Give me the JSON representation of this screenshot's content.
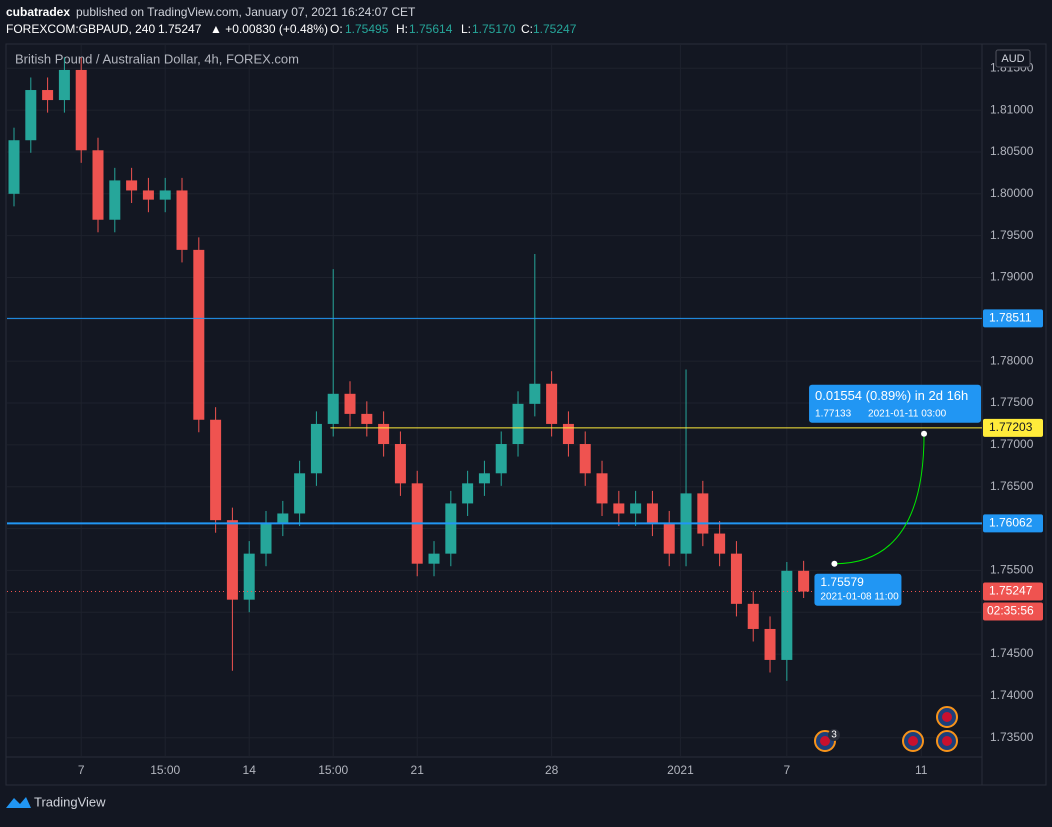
{
  "header": {
    "author": "cubatradex",
    "published": "published on TradingView.com, January 07, 2021 16:24:07 CET",
    "symbol": "FOREXCOM:GBPAUD, 240",
    "last": "1.75247",
    "change": "▲ +0.00830 (+0.48%)",
    "o_label": "O:",
    "o": "1.75495",
    "h_label": "H:",
    "h": "1.75614",
    "l_label": "L:",
    "l": "1.75170",
    "c_label": "C:",
    "c": "1.75247"
  },
  "footer": {
    "brand": "TradingView"
  },
  "chart_data": {
    "type": "candlestick",
    "title": "British Pound / Australian Dollar, 4h, FOREX.com",
    "currency": "AUD",
    "up_color": "#26a69a",
    "down_color": "#ef5350",
    "grid": true,
    "x": [
      0,
      3,
      6,
      9,
      12,
      15,
      18,
      21,
      24,
      27,
      30,
      33,
      36,
      39,
      42,
      45,
      48,
      51,
      54,
      57,
      60,
      63,
      66,
      69,
      72,
      75,
      78,
      81,
      84,
      87,
      90,
      93,
      96,
      99,
      102,
      105,
      108,
      111,
      114,
      117,
      120,
      123,
      126,
      129,
      132,
      135,
      138,
      141
    ],
    "open": [
      1.8,
      1.8064,
      1.8124,
      1.8112,
      1.8148,
      1.8052,
      1.7969,
      1.8016,
      1.8004,
      1.7993,
      1.8004,
      1.7933,
      1.773,
      1.761,
      1.7515,
      1.757,
      1.7606,
      1.7618,
      1.7666,
      1.7725,
      1.7761,
      1.7737,
      1.7725,
      1.7701,
      1.7654,
      1.7558,
      1.757,
      1.763,
      1.7654,
      1.7666,
      1.7701,
      1.7749,
      1.7773,
      1.7725,
      1.7701,
      1.7666,
      1.763,
      1.7618,
      1.763,
      1.7606,
      1.757,
      1.7642,
      1.7594,
      1.757,
      1.751,
      1.748,
      1.7443,
      1.75495
    ],
    "high": [
      1.8079,
      1.8139,
      1.8139,
      1.8163,
      1.8163,
      1.8067,
      1.8031,
      1.8031,
      1.8019,
      1.8019,
      1.8019,
      1.7948,
      1.7745,
      1.7625,
      1.7585,
      1.7621,
      1.7633,
      1.7681,
      1.774,
      1.791,
      1.7776,
      1.7752,
      1.774,
      1.7716,
      1.7669,
      1.7585,
      1.7645,
      1.7669,
      1.7681,
      1.7716,
      1.7764,
      1.7928,
      1.7788,
      1.774,
      1.7716,
      1.7681,
      1.7645,
      1.7645,
      1.7645,
      1.7621,
      1.779,
      1.7657,
      1.7609,
      1.7585,
      1.7525,
      1.7495,
      1.756,
      1.75614
    ],
    "low": [
      1.7985,
      1.8049,
      1.8097,
      1.8097,
      1.8037,
      1.7954,
      1.7954,
      1.7989,
      1.7978,
      1.7978,
      1.7918,
      1.7715,
      1.7595,
      1.743,
      1.75,
      1.7555,
      1.7591,
      1.7603,
      1.7651,
      1.771,
      1.7722,
      1.771,
      1.7686,
      1.7639,
      1.7543,
      1.7543,
      1.7555,
      1.7615,
      1.7639,
      1.7651,
      1.7686,
      1.7734,
      1.771,
      1.7686,
      1.7651,
      1.7615,
      1.7603,
      1.7603,
      1.7591,
      1.7555,
      1.7555,
      1.7579,
      1.7555,
      1.7495,
      1.7465,
      1.7428,
      1.7418,
      1.7517
    ],
    "close": [
      1.8064,
      1.8124,
      1.8112,
      1.8148,
      1.8052,
      1.7969,
      1.8016,
      1.8004,
      1.7993,
      1.8004,
      1.7933,
      1.773,
      1.761,
      1.7515,
      1.757,
      1.7606,
      1.7618,
      1.7666,
      1.7725,
      1.7761,
      1.7737,
      1.7725,
      1.7701,
      1.7654,
      1.7558,
      1.757,
      1.763,
      1.7654,
      1.7666,
      1.7701,
      1.7749,
      1.7773,
      1.7725,
      1.7701,
      1.7666,
      1.763,
      1.7618,
      1.763,
      1.7606,
      1.757,
      1.7642,
      1.7594,
      1.757,
      1.751,
      1.748,
      1.7443,
      1.75495,
      1.75247
    ],
    "xlim": [
      -1.25,
      172.85
    ],
    "xticks": [
      {
        "value": 12,
        "label": "7"
      },
      {
        "value": 27,
        "label": "15:00"
      },
      {
        "value": 42,
        "label": "14"
      },
      {
        "value": 57,
        "label": "15:00"
      },
      {
        "value": 72,
        "label": "21"
      },
      {
        "value": 96,
        "label": "28"
      },
      {
        "value": 119,
        "label": "2021"
      },
      {
        "value": 138,
        "label": "7"
      },
      {
        "value": 162,
        "label": "11"
      }
    ],
    "ylim": [
      1.7327,
      1.8179
    ],
    "yticks": [
      {
        "value": 1.735,
        "label": "1.73500"
      },
      {
        "value": 1.74,
        "label": "1.74000"
      },
      {
        "value": 1.745,
        "label": "1.74500"
      },
      {
        "value": 1.75,
        "label": "1.75000"
      },
      {
        "value": 1.755,
        "label": "1.75500"
      },
      {
        "value": 1.76,
        "label": "1.76000"
      },
      {
        "value": 1.765,
        "label": "1.76500"
      },
      {
        "value": 1.77,
        "label": "1.77000"
      },
      {
        "value": 1.775,
        "label": "1.77500"
      },
      {
        "value": 1.78,
        "label": "1.78000"
      },
      {
        "value": 1.785,
        "label": "1.78500"
      },
      {
        "value": 1.79,
        "label": "1.79000"
      },
      {
        "value": 1.795,
        "label": "1.79500"
      },
      {
        "value": 1.8,
        "label": "1.80000"
      },
      {
        "value": 1.805,
        "label": "1.80500"
      },
      {
        "value": 1.81,
        "label": "1.81000"
      },
      {
        "value": 1.815,
        "label": "1.81500"
      }
    ],
    "levels": [
      {
        "value": 1.78511,
        "color": "#2196f3",
        "width": 1
      },
      {
        "value": 1.76062,
        "color": "#2196f3",
        "width": 2
      },
      {
        "value": 1.77203,
        "color": "#ffeb3b",
        "width": 1,
        "x_start": 56.5
      }
    ],
    "last_price": {
      "value": 1.75247,
      "color": "#ef5350",
      "countdown": "02:35:56"
    },
    "measure": {
      "x1": 146.5,
      "y1": 1.75579,
      "time1": "2021-01-08 11:00",
      "x2": 162.5,
      "y2": 1.77133,
      "time2": "2021-01-11  03:00",
      "text": "0.01554 (0.89%) in 2d 16h",
      "color": "#2196f3"
    },
    "event_badge": 3
  }
}
